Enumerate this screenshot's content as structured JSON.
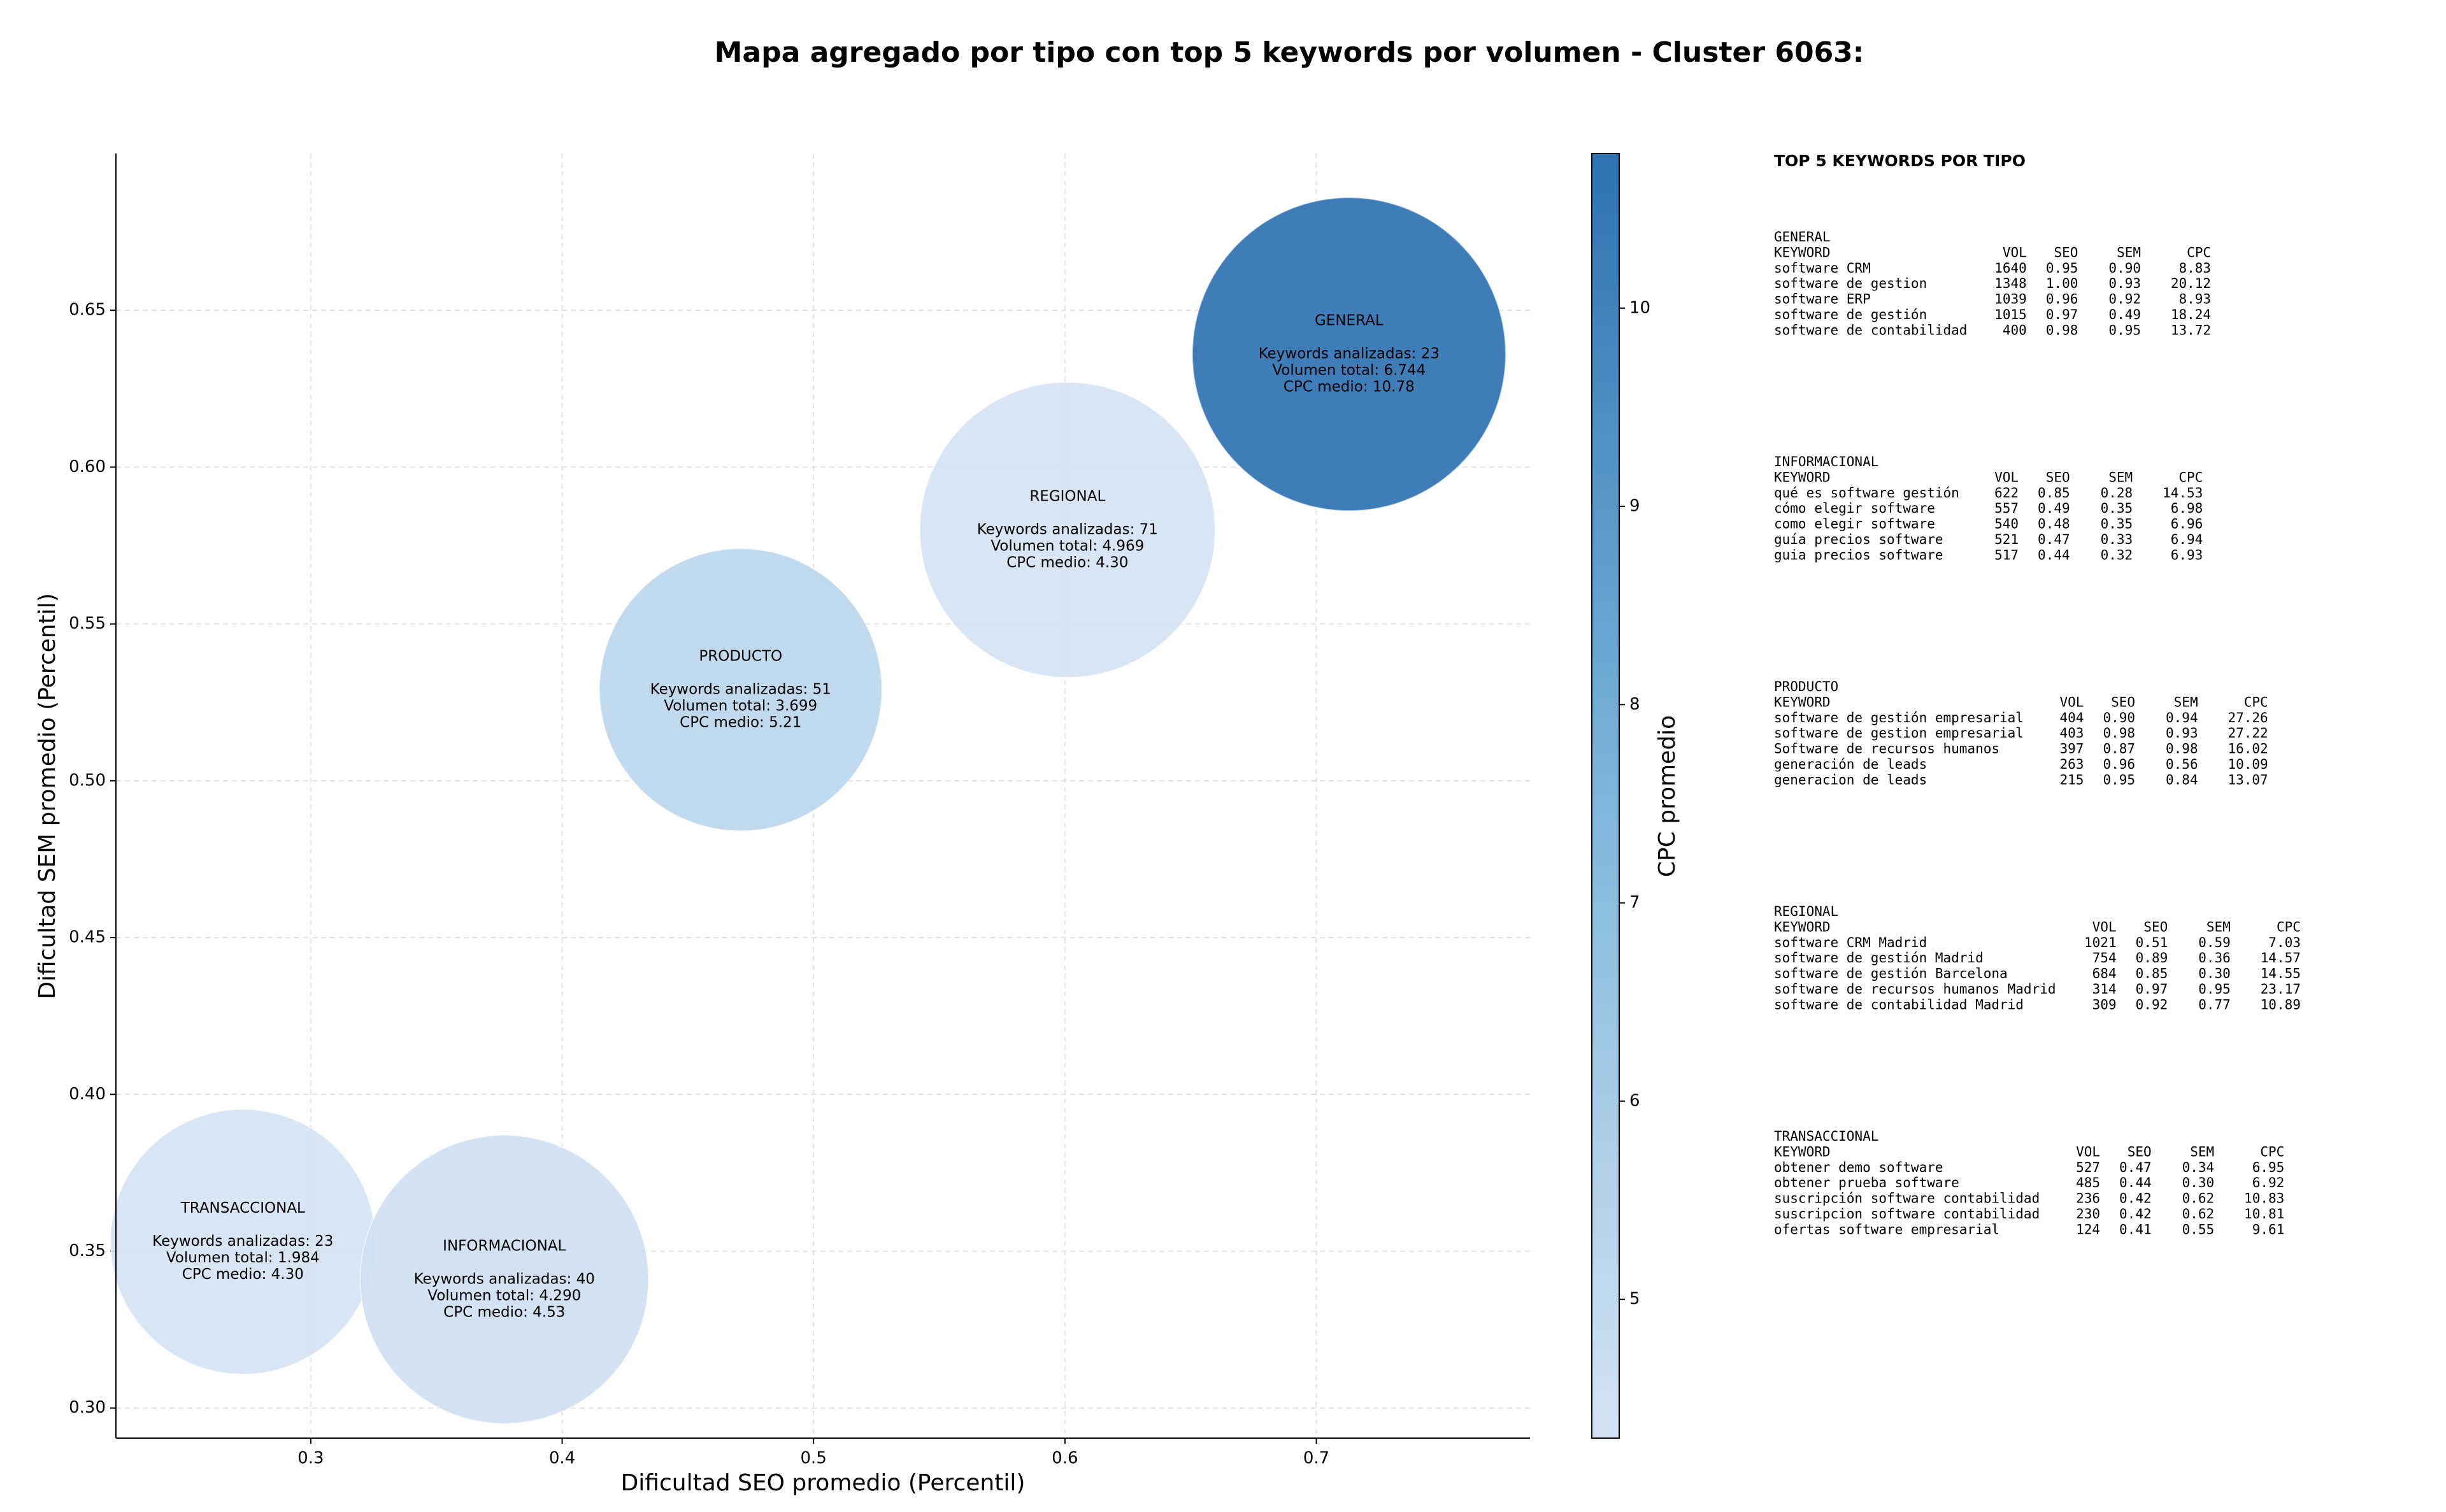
{
  "chart_data": {
    "type": "bubble",
    "title": "Mapa agregado por tipo con top 5 keywords por volumen - Cluster 6063:",
    "xlabel": "Dificultad SEO promedio (Percentil)",
    "ylabel": "Dificultad SEM promedio (Percentil)",
    "categories": [
      "GENERAL",
      "REGIONAL",
      "PRODUCTO",
      "TRANSACCIONAL",
      "INFORMACIONAL"
    ],
    "x": [
      0.713,
      0.601,
      0.471,
      0.273,
      0.377
    ],
    "values": [
      0.636,
      0.58,
      0.529,
      0.353,
      0.341
    ],
    "sizes": [
      6744,
      4969,
      3699,
      1984,
      4290
    ],
    "cpc": [
      10.78,
      4.3,
      5.21,
      4.3,
      4.53
    ],
    "annotations": [
      [
        "Keywords analizadas: 23",
        "Volumen total: 6.744",
        "CPC medio: 10.78"
      ],
      [
        "Keywords analizadas: 71",
        "Volumen total: 4.969",
        "CPC medio: 4.30"
      ],
      [
        "Keywords analizadas: 51",
        "Volumen total: 3.699",
        "CPC medio: 5.21"
      ],
      [
        "Keywords analizadas: 23",
        "Volumen total: 1.984",
        "CPC medio: 4.30"
      ],
      [
        "Keywords analizadas: 40",
        "Volumen total: 4.290",
        "CPC medio: 4.53"
      ]
    ],
    "xlim": [
      0.2225,
      0.785
    ],
    "xticks": [
      0.3,
      0.4,
      0.5,
      0.6,
      0.7
    ],
    "ylim": [
      0.2904,
      0.7
    ],
    "yticks": [
      {
        "value": 0.3,
        "label": "0.30"
      },
      0.35,
      {
        "value": 0.4,
        "label": "0.40"
      },
      0.45,
      {
        "value": 0.5,
        "label": "0.50"
      },
      0.55,
      {
        "value": 0.6,
        "label": "0.60"
      },
      0.65
    ],
    "grid": true,
    "clabel": "CPC promedio",
    "clim": [
      4.3,
      10.78
    ],
    "cticks": [
      5,
      6,
      7,
      8,
      9,
      10
    ],
    "colormap": [
      "#d4e3f3",
      "#7db6da",
      "#2e72b2"
    ]
  },
  "keyword_panel": {
    "title": "TOP 5 KEYWORDS POR TIPO",
    "header": [
      "KEYWORD",
      "VOL",
      "SEO",
      "SEM",
      "CPC"
    ],
    "groups": [
      {
        "name": "GENERAL",
        "rows": [
          [
            "software CRM",
            "1640",
            "0.95",
            "0.90",
            "8.83"
          ],
          [
            "software de gestion",
            "1348",
            "1.00",
            "0.93",
            "20.12"
          ],
          [
            "software ERP",
            "1039",
            "0.96",
            "0.92",
            "8.93"
          ],
          [
            "software de gestión",
            "1015",
            "0.97",
            "0.49",
            "18.24"
          ],
          [
            "software de contabilidad",
            "400",
            "0.98",
            "0.95",
            "13.72"
          ]
        ]
      },
      {
        "name": "INFORMACIONAL",
        "rows": [
          [
            "qué es software gestión",
            "622",
            "0.85",
            "0.28",
            "14.53"
          ],
          [
            "cómo elegir software",
            "557",
            "0.49",
            "0.35",
            "6.98"
          ],
          [
            "como elegir software",
            "540",
            "0.48",
            "0.35",
            "6.96"
          ],
          [
            "guía precios software",
            "521",
            "0.47",
            "0.33",
            "6.94"
          ],
          [
            "guia precios software",
            "517",
            "0.44",
            "0.32",
            "6.93"
          ]
        ]
      },
      {
        "name": "PRODUCTO",
        "rows": [
          [
            "software de gestión empresarial",
            "404",
            "0.90",
            "0.94",
            "27.26"
          ],
          [
            "software de gestion empresarial",
            "403",
            "0.98",
            "0.93",
            "27.22"
          ],
          [
            "Software de recursos humanos",
            "397",
            "0.87",
            "0.98",
            "16.02"
          ],
          [
            "generación de leads",
            "263",
            "0.96",
            "0.56",
            "10.09"
          ],
          [
            "generacion de leads",
            "215",
            "0.95",
            "0.84",
            "13.07"
          ]
        ]
      },
      {
        "name": "REGIONAL",
        "rows": [
          [
            "software CRM Madrid",
            "1021",
            "0.51",
            "0.59",
            "7.03"
          ],
          [
            "software de gestión Madrid",
            "754",
            "0.89",
            "0.36",
            "14.57"
          ],
          [
            "software de gestión Barcelona",
            "684",
            "0.85",
            "0.30",
            "14.55"
          ],
          [
            "software de recursos humanos Madrid",
            "314",
            "0.97",
            "0.95",
            "23.17"
          ],
          [
            "software de contabilidad Madrid",
            "309",
            "0.92",
            "0.77",
            "10.89"
          ]
        ]
      },
      {
        "name": "TRANSACCIONAL",
        "rows": [
          [
            "obtener demo software",
            "527",
            "0.47",
            "0.34",
            "6.95"
          ],
          [
            "obtener prueba software",
            "485",
            "0.44",
            "0.30",
            "6.92"
          ],
          [
            "suscripción software contabilidad",
            "236",
            "0.42",
            "0.62",
            "10.83"
          ],
          [
            "suscripcion software contabilidad",
            "230",
            "0.42",
            "0.62",
            "10.81"
          ],
          [
            "ofertas software empresarial",
            "124",
            "0.41",
            "0.55",
            "9.61"
          ]
        ]
      }
    ]
  }
}
